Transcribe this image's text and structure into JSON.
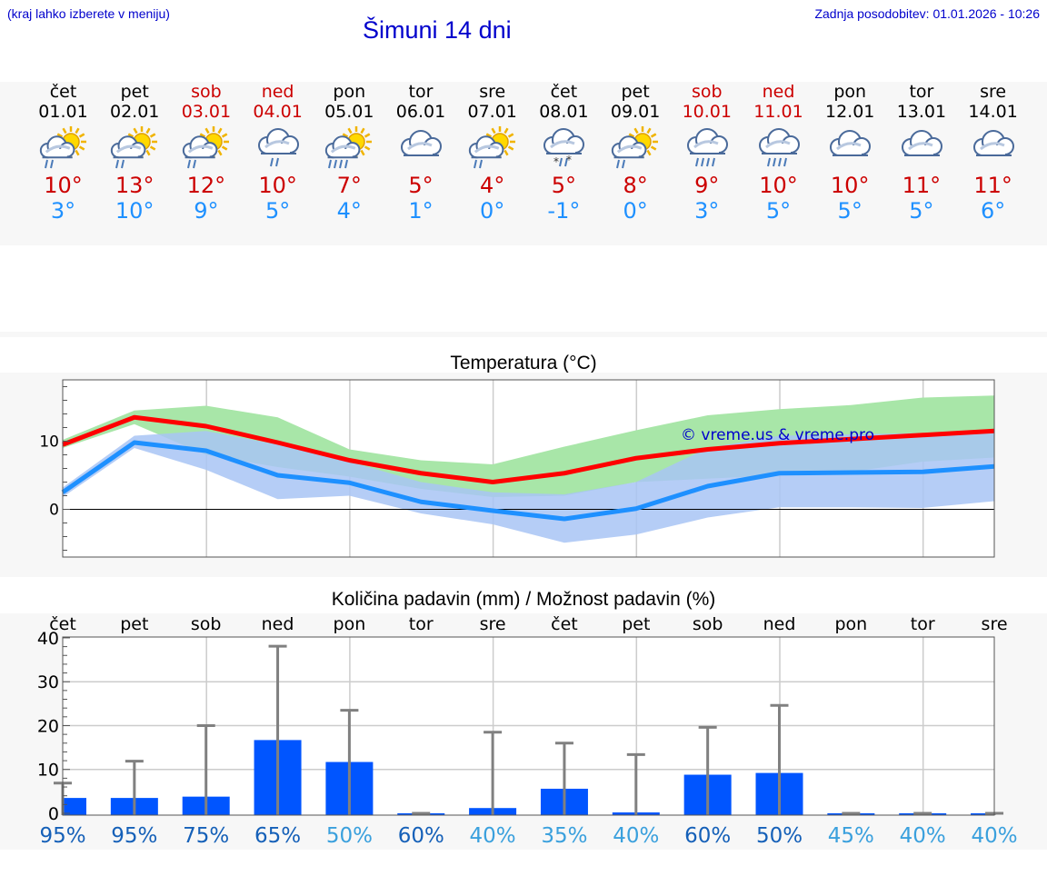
{
  "header": {
    "hint": "(kraj lahko izberete v meniju)",
    "title": "Šimuni 14 dni",
    "updated": "Zadnja posodobitev: 01.01.2026 - 10:26"
  },
  "days": [
    {
      "wd": "čet",
      "date": "01.01",
      "weekend": false,
      "icon": "sun-cloud-rain-icon",
      "tmax": "10°",
      "tmin": "3°"
    },
    {
      "wd": "pet",
      "date": "02.01",
      "weekend": false,
      "icon": "sun-cloud-rain-icon",
      "tmax": "13°",
      "tmin": "10°"
    },
    {
      "wd": "sob",
      "date": "03.01",
      "weekend": true,
      "icon": "sun-cloud-rain-icon",
      "tmax": "12°",
      "tmin": "9°"
    },
    {
      "wd": "ned",
      "date": "04.01",
      "weekend": true,
      "icon": "cloud-rain-icon",
      "tmax": "10°",
      "tmin": "5°"
    },
    {
      "wd": "pon",
      "date": "05.01",
      "weekend": false,
      "icon": "sun-cloud-heavy-rain-icon",
      "tmax": "7°",
      "tmin": "4°"
    },
    {
      "wd": "tor",
      "date": "06.01",
      "weekend": false,
      "icon": "cloud-icon",
      "tmax": "5°",
      "tmin": "1°"
    },
    {
      "wd": "sre",
      "date": "07.01",
      "weekend": false,
      "icon": "sun-cloud-rain-icon",
      "tmax": "4°",
      "tmin": "0°"
    },
    {
      "wd": "čet",
      "date": "08.01",
      "weekend": false,
      "icon": "cloud-sleet-icon",
      "tmax": "5°",
      "tmin": "-1°"
    },
    {
      "wd": "pet",
      "date": "09.01",
      "weekend": false,
      "icon": "sun-cloud-rain-icon",
      "tmax": "8°",
      "tmin": "0°"
    },
    {
      "wd": "sob",
      "date": "10.01",
      "weekend": true,
      "icon": "cloud-heavy-rain-icon",
      "tmax": "9°",
      "tmin": "3°"
    },
    {
      "wd": "ned",
      "date": "11.01",
      "weekend": true,
      "icon": "cloud-heavy-rain-icon",
      "tmax": "10°",
      "tmin": "5°"
    },
    {
      "wd": "pon",
      "date": "12.01",
      "weekend": false,
      "icon": "cloud-icon",
      "tmax": "10°",
      "tmin": "5°"
    },
    {
      "wd": "tor",
      "date": "13.01",
      "weekend": false,
      "icon": "cloud-icon",
      "tmax": "11°",
      "tmin": "5°"
    },
    {
      "wd": "sre",
      "date": "14.01",
      "weekend": false,
      "icon": "cloud-icon",
      "tmax": "11°",
      "tmin": "6°"
    }
  ],
  "colors": {
    "max": "#ff0000",
    "min": "#1e90ff",
    "max_band": "#a8e6a8",
    "min_band": "#a8c4f4",
    "overlap": "#7cc4a8",
    "bar": "#0055ff",
    "whisker": "#808080"
  },
  "chart_data": [
    {
      "type": "line",
      "title": "Temperatura (°C)",
      "watermark": "© vreme.us & vreme.pro",
      "ylim": [
        -7,
        19
      ],
      "yticks": [
        0,
        10
      ],
      "grid": true,
      "x": [
        0,
        1,
        2,
        3,
        4,
        5,
        6,
        7,
        8,
        9,
        10,
        11,
        12,
        13
      ],
      "series": [
        {
          "name": "max",
          "values": [
            9.5,
            13.5,
            12.2,
            9.8,
            7.2,
            5.3,
            4.0,
            5.3,
            7.5,
            8.8,
            9.7,
            10.3,
            10.9,
            11.5
          ]
        },
        {
          "name": "min",
          "values": [
            2.5,
            9.8,
            8.6,
            5.0,
            3.9,
            1.1,
            -0.2,
            -1.4,
            0.1,
            3.4,
            5.3,
            5.4,
            5.5,
            6.3
          ]
        },
        {
          "name": "max_upper",
          "values": [
            10.2,
            14.5,
            15.2,
            13.5,
            8.8,
            7.2,
            6.6,
            9.2,
            11.6,
            13.8,
            14.7,
            15.3,
            16.4,
            16.7
          ]
        },
        {
          "name": "max_lower",
          "values": [
            9.0,
            12.5,
            8.0,
            6.2,
            4.8,
            3.0,
            1.8,
            2.0,
            4.0,
            4.5,
            5.0,
            5.5,
            7.0,
            7.6
          ]
        },
        {
          "name": "min_upper",
          "values": [
            3.2,
            10.8,
            11.5,
            9.5,
            7.0,
            4.0,
            2.5,
            2.2,
            4.0,
            9.0,
            10.8,
            11.0,
            11.2,
            11.5
          ]
        },
        {
          "name": "min_lower",
          "values": [
            1.8,
            9.0,
            5.8,
            1.5,
            2.0,
            -0.6,
            -2.2,
            -4.9,
            -3.7,
            -1.2,
            0.3,
            0.3,
            0.2,
            1.2
          ]
        }
      ]
    },
    {
      "type": "bar",
      "title": "Količina padavin (mm) / Možnost padavin (%)",
      "categories": [
        "čet",
        "pet",
        "sob",
        "ned",
        "pon",
        "tor",
        "sre",
        "čet",
        "pet",
        "sob",
        "ned",
        "pon",
        "tor",
        "sre"
      ],
      "values": [
        3.5,
        3.5,
        3.8,
        16.7,
        11.7,
        0,
        1.2,
        5.6,
        0.2,
        8.8,
        9.2,
        0,
        0,
        0
      ],
      "error_high": [
        6.9,
        11.9,
        20.0,
        38.1,
        23.5,
        0,
        18.5,
        16.0,
        13.4,
        19.6,
        24.6,
        0,
        0,
        0
      ],
      "probability": [
        "95%",
        "95%",
        "75%",
        "65%",
        "50%",
        "60%",
        "40%",
        "35%",
        "40%",
        "60%",
        "50%",
        "45%",
        "40%",
        "40%"
      ],
      "probability_colors": [
        "#1560b8",
        "#1560b8",
        "#1560b8",
        "#1560b8",
        "#3aa0dd",
        "#1560b8",
        "#3aa0dd",
        "#3aa0dd",
        "#3aa0dd",
        "#1560b8",
        "#1560b8",
        "#3aa0dd",
        "#3aa0dd",
        "#3aa0dd"
      ],
      "ylim": [
        0,
        40
      ],
      "yticks": [
        0,
        10,
        20,
        30,
        40
      ],
      "ylabel": "mm"
    }
  ]
}
